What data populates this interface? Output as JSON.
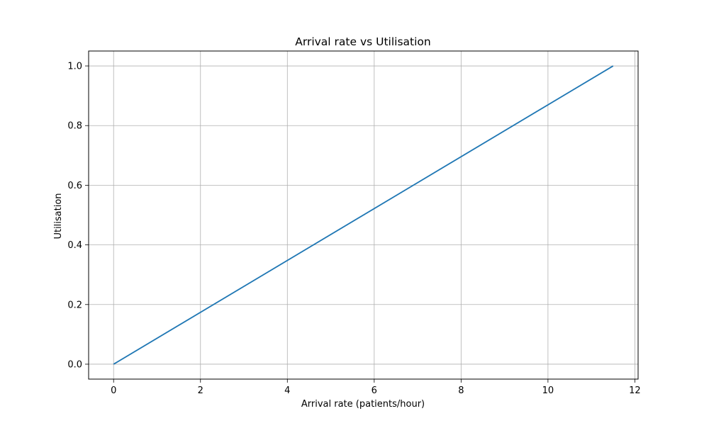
{
  "chart_data": {
    "type": "line",
    "title": "Arrival rate vs Utilisation",
    "xlabel": "Arrival rate (patients/hour)",
    "ylabel": "Utilisation",
    "xlim": [
      -0.575,
      12.075
    ],
    "ylim": [
      -0.05,
      1.05
    ],
    "xticks": [
      0,
      2,
      4,
      6,
      8,
      10,
      12
    ],
    "xtick_labels": [
      "0",
      "2",
      "4",
      "6",
      "8",
      "10",
      "12"
    ],
    "yticks": [
      0.0,
      0.2,
      0.4,
      0.6,
      0.8,
      1.0
    ],
    "ytick_labels": [
      "0.0",
      "0.2",
      "0.4",
      "0.6",
      "0.8",
      "1.0"
    ],
    "grid": true,
    "series": [
      {
        "color": "#1f77b4",
        "x": [
          0,
          11.5
        ],
        "y": [
          0.0,
          1.0
        ]
      }
    ]
  }
}
